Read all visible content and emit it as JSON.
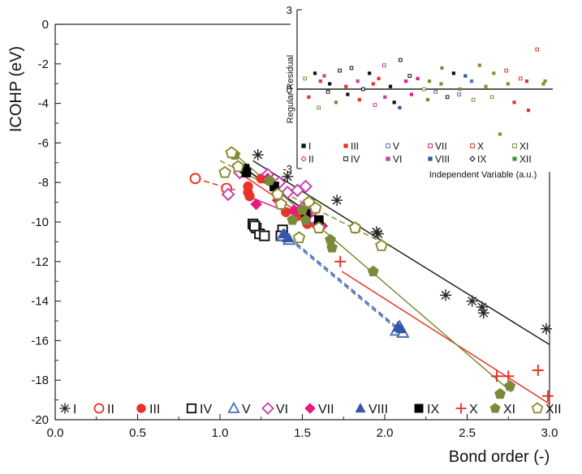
{
  "chart_data": [
    {
      "type": "scatter",
      "title": "",
      "xlabel": "Bond order (-)",
      "ylabel": "ICOHP (eV)",
      "xlim": [
        0.0,
        3.0
      ],
      "ylim": [
        -20,
        0
      ],
      "xticks": [
        "0.0",
        "0.5",
        "1.0",
        "1.5",
        "2.0",
        "2.5",
        "3.0"
      ],
      "yticks": [
        "0",
        "-2",
        "-4",
        "-6",
        "-8",
        "-10",
        "-12",
        "-14",
        "-16",
        "-18",
        "-20"
      ],
      "grid": false,
      "legend_position": "bottom",
      "series": [
        {
          "name": "I",
          "color": "#222222",
          "marker": "asterisk",
          "x": [
            1.23,
            1.41,
            1.71,
            1.82,
            1.95,
            1.96,
            2.37,
            2.53,
            2.59,
            2.6,
            2.98
          ],
          "y": [
            -6.6,
            -7.7,
            -8.9,
            -10.3,
            -10.5,
            -10.6,
            -13.7,
            -14.0,
            -14.3,
            -14.6,
            -15.4
          ],
          "fit": {
            "x": [
              1.2,
              3.0
            ],
            "y": [
              -6.9,
              -16.2
            ],
            "dashed": false
          }
        },
        {
          "name": "II",
          "color": "#e8322a",
          "marker": "circle-open",
          "x": [
            0.85,
            1.04
          ],
          "y": [
            -7.8,
            -8.3
          ],
          "fit": {
            "x": [
              0.85,
              1.1
            ],
            "y": [
              -7.8,
              -8.4
            ],
            "dashed": true
          }
        },
        {
          "name": "III",
          "color": "#e8322a",
          "marker": "circle-filled",
          "x": [
            1.25,
            1.17,
            1.17,
            1.18,
            1.4,
            1.47,
            1.53,
            1.58
          ],
          "y": [
            -7.8,
            -8.2,
            -8.5,
            -8.7,
            -9.5,
            -9.7,
            -10.1,
            -10.1
          ],
          "fit": {
            "x": [
              1.15,
              1.6
            ],
            "y": [
              -7.7,
              -10.2
            ],
            "dashed": false
          }
        },
        {
          "name": "IV",
          "color": "#111111",
          "marker": "square-open",
          "x": [
            1.2,
            1.22,
            1.24,
            1.21,
            1.27,
            1.38,
            1.37
          ],
          "y": [
            -10.1,
            -10.3,
            -10.6,
            -10.2,
            -10.7,
            -10.4,
            -10.7
          ],
          "fit": null
        },
        {
          "name": "V",
          "color": "#4a6fb5",
          "marker": "triangle-open",
          "x": [
            1.38,
            1.42,
            2.07,
            2.09,
            2.11
          ],
          "y": [
            -10.7,
            -10.9,
            -15.5,
            -15.3,
            -15.6
          ],
          "fit": {
            "x": [
              1.38,
              2.1
            ],
            "y": [
              -10.6,
              -15.6
            ],
            "dashed": true
          }
        },
        {
          "name": "VI",
          "color": "#c83cab",
          "marker": "diamond-open",
          "x": [
            1.05,
            1.12,
            1.29,
            1.36,
            1.41,
            1.47,
            1.52,
            1.5,
            1.56,
            1.6,
            1.57
          ],
          "y": [
            -8.6,
            -7.5,
            -7.6,
            -8.0,
            -8.5,
            -8.4,
            -8.2,
            -9.3,
            -9.8,
            -10.1,
            -9.4
          ],
          "fit": null
        },
        {
          "name": "VII",
          "color": "#e8197d",
          "marker": "diamond-filled",
          "x": [
            1.22,
            1.29,
            1.35,
            1.45,
            1.53,
            1.6,
            1.62
          ],
          "y": [
            -9.1,
            -7.8,
            -8.9,
            -9.4,
            -9.7,
            -10.1,
            -10.2
          ],
          "fit": {
            "x": [
              1.2,
              1.62
            ],
            "y": [
              -8.8,
              -10.2
            ],
            "dashed": false
          }
        },
        {
          "name": "VIII",
          "color": "#3455a8",
          "marker": "triangle-filled",
          "x": [
            1.39,
            1.41,
            2.08,
            2.1
          ],
          "y": [
            -10.6,
            -10.8,
            -15.3,
            -15.4
          ],
          "fit": {
            "x": [
              1.38,
              2.1
            ],
            "y": [
              -10.5,
              -15.5
            ],
            "dashed": true
          }
        },
        {
          "name": "IX",
          "color": "#000000",
          "marker": "square-filled",
          "x": [
            1.15,
            1.16,
            1.33,
            1.52,
            1.6
          ],
          "y": [
            -7.3,
            -7.5,
            -8.2,
            -9.6,
            -9.9
          ],
          "fit": {
            "x": [
              1.15,
              1.62
            ],
            "y": [
              -7.3,
              -10.0
            ],
            "dashed": false
          }
        },
        {
          "name": "X",
          "color": "#e8322a",
          "marker": "plus",
          "x": [
            1.73,
            2.68,
            2.75,
            2.93,
            2.99
          ],
          "y": [
            -12.0,
            -17.8,
            -17.8,
            -17.5,
            -18.8
          ],
          "fit": {
            "x": [
              1.74,
              3.0
            ],
            "y": [
              -12.5,
              -19.2
            ],
            "dashed": false
          }
        },
        {
          "name": "XI",
          "color": "#7a8a3a",
          "marker": "pentagon-filled",
          "x": [
            1.09,
            1.3,
            1.44,
            1.52,
            1.5,
            1.67,
            1.68,
            1.93,
            2.7,
            2.76
          ],
          "y": [
            -6.6,
            -7.9,
            -9.9,
            -9.9,
            -9.4,
            -10.9,
            -11.3,
            -12.5,
            -18.7,
            -18.3
          ],
          "fit": {
            "x": [
              1.08,
              2.77
            ],
            "y": [
              -6.5,
              -18.6
            ],
            "dashed": false
          }
        },
        {
          "name": "XII",
          "color": "#8c8c2e",
          "marker": "pentagon-open",
          "x": [
            1.03,
            1.07,
            1.11,
            1.35,
            1.37,
            1.48,
            1.54,
            1.58,
            1.6,
            1.82,
            1.98
          ],
          "y": [
            -7.5,
            -6.5,
            -7.2,
            -8.6,
            -9.1,
            -10.8,
            -9.0,
            -9.3,
            -10.3,
            -10.3,
            -11.2
          ],
          "fit": {
            "x": [
              1.0,
              2.0
            ],
            "y": [
              -6.9,
              -11.1
            ],
            "dashed": true
          }
        }
      ]
    },
    {
      "type": "scatter",
      "title": "",
      "xlabel": "Independent Variable (a.u.)",
      "ylabel": "Regular Residual",
      "xlim": [
        0,
        1
      ],
      "ylim": [
        -3,
        3
      ],
      "yticks": [
        "3",
        "0",
        "-3"
      ],
      "zero_line": true,
      "grid": false,
      "legend_position": "bottom-inside",
      "legend": [
        {
          "name": "I",
          "color": "#111111",
          "marker": "square-filled"
        },
        {
          "name": "III",
          "color": "#e8322a",
          "marker": "square-filled"
        },
        {
          "name": "V",
          "color": "#4a6fb5",
          "marker": "square-open"
        },
        {
          "name": "VII",
          "color": "#e8197d",
          "marker": "square-open"
        },
        {
          "name": "X",
          "color": "#e8322a",
          "marker": "square-open"
        },
        {
          "name": "XI",
          "color": "#7a8a3a",
          "marker": "square-open"
        },
        {
          "name": "II",
          "color": "#e8322a",
          "marker": "diamond-open"
        },
        {
          "name": "IV",
          "color": "#111111",
          "marker": "square-open"
        },
        {
          "name": "VI",
          "color": "#c83cab",
          "marker": "square-filled"
        },
        {
          "name": "VIII",
          "color": "#3455a8",
          "marker": "square-filled"
        },
        {
          "name": "IX",
          "color": "#111111",
          "marker": "diamond-open"
        },
        {
          "name": "XII",
          "color": "#3a9a3a",
          "marker": "square-filled"
        }
      ],
      "residuals": {
        "x": [
          0.02,
          0.03,
          0.05,
          0.06,
          0.08,
          0.09,
          0.1,
          0.12,
          0.14,
          0.15,
          0.17,
          0.19,
          0.2,
          0.22,
          0.24,
          0.25,
          0.27,
          0.28,
          0.3,
          0.31,
          0.33,
          0.34,
          0.36,
          0.37,
          0.39,
          0.4,
          0.42,
          0.43,
          0.45,
          0.47,
          0.49,
          0.5,
          0.52,
          0.54,
          0.56,
          0.57,
          0.59,
          0.61,
          0.63,
          0.64,
          0.66,
          0.68,
          0.7,
          0.72,
          0.74,
          0.76,
          0.78,
          0.8,
          0.82,
          0.84,
          0.86,
          0.88,
          0.9,
          0.92,
          0.95,
          0.97,
          0.99
        ],
        "y": [
          0.4,
          -0.3,
          0.6,
          -0.7,
          0.3,
          0.5,
          -0.1,
          0.2,
          -0.5,
          0.7,
          0.1,
          -0.2,
          0.8,
          0.3,
          -0.4,
          0.0,
          0.6,
          0.2,
          -0.6,
          0.4,
          -0.3,
          0.9,
          0.1,
          -0.5,
          1.1,
          -0.7,
          0.3,
          0.5,
          -0.2,
          0.4,
          0.0,
          -0.4,
          0.3,
          -0.1,
          0.8,
          0.2,
          -0.3,
          0.6,
          0.0,
          -0.2,
          0.5,
          0.3,
          -0.4,
          0.9,
          0.1,
          -0.3,
          0.6,
          -1.7,
          0.7,
          0.2,
          -0.5,
          0.4,
          0.3,
          -0.8,
          1.5,
          0.2,
          0.3
        ],
        "colors": [
          "#7a8a3a",
          "#e8322a",
          "#111111",
          "#7a8a3a",
          "#e8322a",
          "#c83cab",
          "#111111",
          "#111111",
          "#7a8a3a",
          "#111111",
          "#e8322a",
          "#111111",
          "#111111",
          "#c83cab",
          "#e8322a",
          "#111111",
          "#111111",
          "#e8322a",
          "#c83cab",
          "#e8322a",
          "#c83cab",
          "#c83cab",
          "#111111",
          "#111111",
          "#111111",
          "#3455a8",
          "#e8197d",
          "#111111",
          "#e8197d",
          "#e8197d",
          "#7a8a3a",
          "#7a8a3a",
          "#7a8a3a",
          "#4a6fb5",
          "#7a8a3a",
          "#7a8a3a",
          "#111111",
          "#111111",
          "#7a8a3a",
          "#4a6fb5",
          "#3455a8",
          "#4a6fb5",
          "#7a8a3a",
          "#8c8c2e",
          "#8c8c2e",
          "#8c8c2e",
          "#8c8c2e",
          "#8c8c2e",
          "#e8322a",
          "#8c8c2e",
          "#e8322a",
          "#e8322a",
          "#e8322a",
          "#e8322a",
          "#e8322a",
          "#8c8c2e",
          "#8c8c2e"
        ]
      }
    }
  ]
}
